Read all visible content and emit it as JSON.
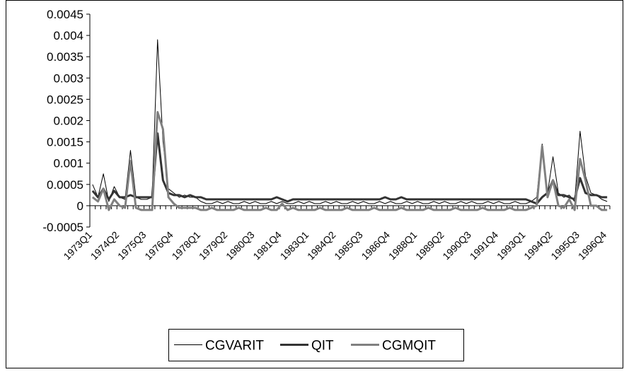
{
  "chart_data": {
    "type": "line",
    "categories": [
      "1973Q1",
      null,
      null,
      null,
      null,
      "1974Q2",
      null,
      null,
      null,
      null,
      "1975Q3",
      null,
      null,
      null,
      null,
      "1976Q4",
      null,
      null,
      null,
      null,
      "1978Q1",
      null,
      null,
      null,
      null,
      "1979Q2",
      null,
      null,
      null,
      null,
      "1980Q3",
      null,
      null,
      null,
      null,
      "1981Q4",
      null,
      null,
      null,
      null,
      "1983Q1",
      null,
      null,
      null,
      null,
      "1984Q2",
      null,
      null,
      null,
      null,
      "1985Q3",
      null,
      null,
      null,
      null,
      "1986Q4",
      null,
      null,
      null,
      null,
      "1988Q1",
      null,
      null,
      null,
      null,
      "1989Q2",
      null,
      null,
      null,
      null,
      "1990Q3",
      null,
      null,
      null,
      null,
      "1991Q4",
      null,
      null,
      null,
      null,
      "1993Q1",
      null,
      null,
      null,
      null,
      "1994Q2",
      null,
      null,
      null,
      null,
      "1995Q3",
      null,
      null,
      null,
      null,
      "1996Q4"
    ],
    "series": [
      {
        "name": "CGVARIT",
        "color": "#000000",
        "width": 1,
        "values": [
          0.0005,
          0.0002,
          0.00075,
          0.0001,
          0.00045,
          0.0002,
          0.00015,
          0.0013,
          0.0002,
          0.00015,
          0.00015,
          0.0002,
          0.0039,
          0.0015,
          0.0004,
          0.0003,
          0.0002,
          0.00025,
          0.0002,
          0.0002,
          0.0001,
          5e-05,
          5e-05,
          0.0001,
          5e-05,
          0.0001,
          5e-05,
          5e-05,
          0.0001,
          5e-05,
          0.0001,
          5e-05,
          5e-05,
          0.0001,
          5e-05,
          0.0001,
          5e-05,
          5e-05,
          0.0001,
          5e-05,
          0.0001,
          5e-05,
          5e-05,
          0.0001,
          5e-05,
          0.0001,
          5e-05,
          5e-05,
          0.0001,
          5e-05,
          0.0001,
          5e-05,
          5e-05,
          0.0001,
          5e-05,
          0.0001,
          5e-05,
          5e-05,
          0.0001,
          5e-05,
          0.0001,
          5e-05,
          5e-05,
          0.0001,
          5e-05,
          0.0001,
          5e-05,
          5e-05,
          0.0001,
          5e-05,
          0.0001,
          5e-05,
          5e-05,
          0.0001,
          5e-05,
          0.0001,
          5e-05,
          5e-05,
          0.0001,
          5e-05,
          5e-05,
          0.0001,
          0.0002,
          0.00145,
          0.0003,
          0.00115,
          0.0003,
          0.0002,
          0.00025,
          0.0001,
          0.00175,
          0.0007,
          0.0003,
          0.00025,
          0.00015,
          0.0001
        ]
      },
      {
        "name": "QIT",
        "color": "#333333",
        "width": 3,
        "values": [
          0.00035,
          0.0002,
          0.0004,
          0.00015,
          0.00035,
          0.0002,
          0.0002,
          0.00025,
          0.0002,
          0.0002,
          0.0002,
          0.0002,
          0.0017,
          0.0006,
          0.0003,
          0.00025,
          0.00025,
          0.0002,
          0.00025,
          0.0002,
          0.0002,
          0.00015,
          0.00015,
          0.00015,
          0.00015,
          0.00015,
          0.00015,
          0.00015,
          0.00015,
          0.00015,
          0.00015,
          0.00015,
          0.00015,
          0.00015,
          0.0002,
          0.00015,
          0.0001,
          0.00015,
          0.00015,
          0.00015,
          0.00015,
          0.00015,
          0.00015,
          0.00015,
          0.00015,
          0.00015,
          0.00015,
          0.00015,
          0.00015,
          0.00015,
          0.00015,
          0.00015,
          0.00015,
          0.00015,
          0.0002,
          0.00015,
          0.00015,
          0.0002,
          0.00015,
          0.00015,
          0.00015,
          0.00015,
          0.00015,
          0.00015,
          0.00015,
          0.00015,
          0.00015,
          0.00015,
          0.00015,
          0.00015,
          0.00015,
          0.00015,
          0.00015,
          0.00015,
          0.00015,
          0.00015,
          0.00015,
          0.00015,
          0.00015,
          0.00015,
          0.00015,
          0.0001,
          5e-05,
          0.0002,
          0.0003,
          0.0006,
          0.00025,
          0.00025,
          0.0002,
          0.00015,
          0.00065,
          0.0003,
          0.00025,
          0.00025,
          0.0002,
          0.0002
        ]
      },
      {
        "name": "CGMQIT",
        "color": "#808080",
        "width": 3,
        "values": [
          0.0002,
          0.0001,
          0.0004,
          -0.0001,
          0.00015,
          0,
          -5e-05,
          0.00105,
          -5e-05,
          -0.0001,
          -0.0001,
          -0.0001,
          0.0022,
          0.0018,
          0.0002,
          5e-05,
          -5e-05,
          -5e-05,
          -5e-05,
          -5e-05,
          -0.0001,
          -0.0001,
          -5e-05,
          -0.0001,
          -0.0001,
          -0.0001,
          -0.0001,
          -5e-05,
          -0.0001,
          -0.0001,
          -0.0001,
          -0.0001,
          -5e-05,
          -0.0001,
          -0.0001,
          5e-05,
          -0.0001,
          -5e-05,
          -0.0001,
          -0.0001,
          -0.0001,
          -0.0001,
          -5e-05,
          -0.0001,
          -0.0001,
          -0.0001,
          -0.0001,
          -5e-05,
          -0.0001,
          -0.0001,
          -0.0001,
          -0.0001,
          -5e-05,
          -0.0001,
          -0.0001,
          -0.0001,
          -0.0001,
          -5e-05,
          -0.0001,
          -0.0001,
          -0.0001,
          -0.0001,
          -5e-05,
          -0.0001,
          -0.0001,
          -0.0001,
          -0.0001,
          -5e-05,
          -0.0001,
          -0.0001,
          -0.0001,
          -0.0001,
          -5e-05,
          -0.0001,
          -0.0001,
          -0.0001,
          -0.0001,
          -5e-05,
          -0.0001,
          -0.0001,
          -0.0001,
          -5e-05,
          0,
          0.0014,
          0.0002,
          0.0006,
          0,
          -5e-05,
          0.00015,
          -0.0001,
          0.0011,
          0.0006,
          0,
          0,
          -0.0001,
          -0.0001
        ]
      }
    ],
    "ylim": [
      -0.0005,
      0.0045
    ],
    "yticks": [
      -0.0005,
      0,
      0.0005,
      0.001,
      0.0015,
      0.002,
      0.0025,
      0.003,
      0.0035,
      0.004,
      0.0045
    ],
    "legend": "bottom"
  }
}
